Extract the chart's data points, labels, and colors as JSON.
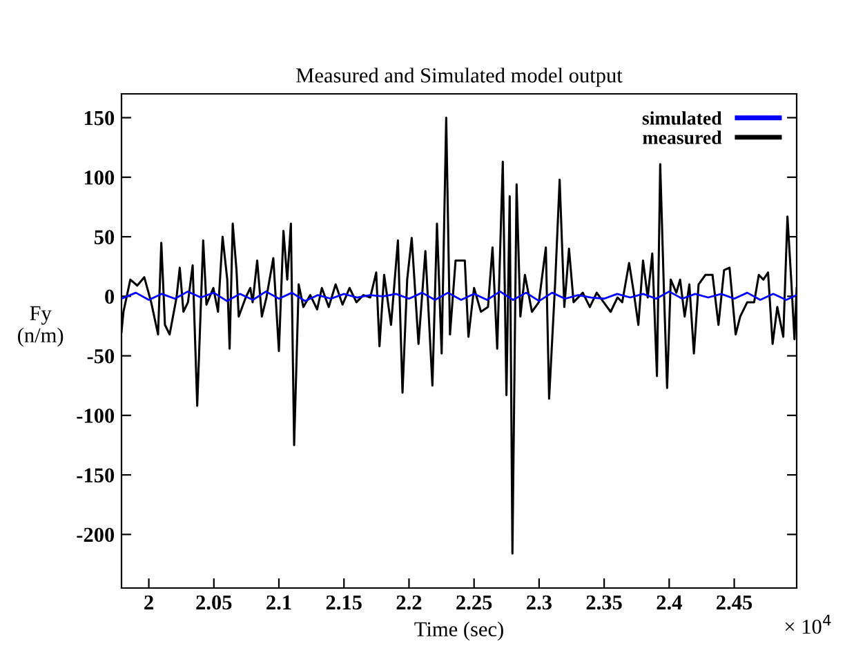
{
  "chart_data": {
    "type": "line",
    "title": "Measured and Simulated model output",
    "xlabel": "Time (sec)",
    "ylabel": "Fy\n(n/m)",
    "annotations": [
      "× 10$^{4}$"
    ],
    "xlim": [
      1.979,
      2.498
    ],
    "ylim": [
      -245,
      170
    ],
    "xticks": [
      2,
      2.05,
      2.1,
      2.15,
      2.2,
      2.25,
      2.3,
      2.35,
      2.4,
      2.45
    ],
    "yticks": [
      -200,
      -150,
      -100,
      -50,
      0,
      50,
      100,
      150
    ],
    "grid": false,
    "legend": "top right",
    "marker": "none",
    "line_style": "solid",
    "series": [
      {
        "name": "simulated",
        "color": "#0000ff",
        "x": [
          1.979,
          1.99,
          2.0,
          2.01,
          2.02,
          2.03,
          2.04,
          2.05,
          2.06,
          2.07,
          2.08,
          2.09,
          2.1,
          2.11,
          2.12,
          2.13,
          2.14,
          2.15,
          2.16,
          2.17,
          2.18,
          2.19,
          2.2,
          2.21,
          2.22,
          2.23,
          2.24,
          2.25,
          2.26,
          2.27,
          2.28,
          2.29,
          2.3,
          2.31,
          2.32,
          2.33,
          2.34,
          2.35,
          2.36,
          2.37,
          2.38,
          2.39,
          2.4,
          2.41,
          2.42,
          2.43,
          2.44,
          2.45,
          2.46,
          2.47,
          2.48,
          2.49,
          2.498
        ],
        "values": [
          -2,
          3,
          -3,
          2,
          -2,
          4,
          -1,
          3,
          -4,
          2,
          -3,
          4,
          -2,
          3,
          -4,
          1,
          -2,
          2,
          -1,
          1,
          0,
          2,
          -2,
          3,
          -3,
          3,
          -3,
          2,
          -3,
          4,
          -3,
          3,
          -4,
          3,
          -2,
          1,
          -1,
          -2,
          2,
          -1,
          2,
          -2,
          4,
          -2,
          2,
          -1,
          2,
          -2,
          3,
          -3,
          2,
          -3,
          1
        ]
      },
      {
        "name": "measured",
        "color": "#000000",
        "x": [
          1.979,
          1.9805,
          1.9858,
          1.9911,
          1.9965,
          2.0018,
          2.0071,
          2.0096,
          2.0124,
          2.016,
          2.0213,
          2.0238,
          2.0266,
          2.0301,
          2.0337,
          2.0372,
          2.0418,
          2.0443,
          2.0496,
          2.0532,
          2.0567,
          2.0603,
          2.0621,
          2.0645,
          2.0674,
          2.0691,
          2.0745,
          2.078,
          2.0798,
          2.0833,
          2.0869,
          2.0904,
          2.0957,
          2.1,
          2.1035,
          2.1064,
          2.1092,
          2.1117,
          2.1152,
          2.1188,
          2.1241,
          2.1294,
          2.133,
          2.1383,
          2.1436,
          2.1489,
          2.1543,
          2.1596,
          2.1649,
          2.1702,
          2.1748,
          2.1773,
          2.1809,
          2.1862,
          2.1915,
          2.195,
          2.1986,
          2.2021,
          2.2073,
          2.2126,
          2.218,
          2.2215,
          2.2251,
          2.2286,
          2.2315,
          2.2358,
          2.2429,
          2.2457,
          2.25,
          2.2553,
          2.2607,
          2.2642,
          2.2678,
          2.2721,
          2.2749,
          2.2774,
          2.2795,
          2.2827,
          2.2856,
          2.2891,
          2.2945,
          2.2998,
          2.3052,
          2.3077,
          2.3123,
          2.3158,
          2.3194,
          2.323,
          2.3265,
          2.3336,
          2.339,
          2.3443,
          2.3496,
          2.355,
          2.3603,
          2.3639,
          2.3692,
          2.3728,
          2.3763,
          2.3799,
          2.3835,
          2.387,
          2.3906,
          2.3931,
          2.3959,
          2.3984,
          2.4012,
          2.4055,
          2.4084,
          2.4119,
          2.4155,
          2.419,
          2.4226,
          2.4279,
          2.4333,
          2.4379,
          2.4422,
          2.4464,
          2.4511,
          2.4546,
          2.46,
          2.4653,
          2.4689,
          2.4724,
          2.476,
          2.4795,
          2.4831,
          2.4877,
          2.4909,
          2.4938,
          2.4963,
          2.498
        ],
        "values": [
          -30,
          -13,
          14,
          9,
          16,
          -5,
          -32,
          45,
          -24,
          -32,
          -1,
          24,
          -13,
          -5,
          26,
          -92,
          47,
          -7,
          7,
          -13,
          50,
          14,
          -44,
          61,
          22,
          -17,
          -1,
          7,
          -5,
          30,
          -17,
          -1,
          32,
          -46,
          55,
          14,
          61,
          -125,
          10,
          -9,
          1,
          -11,
          7,
          -9,
          10,
          -7,
          7,
          -5,
          1,
          -1,
          20,
          -42,
          18,
          -24,
          47,
          -81,
          14,
          49,
          -40,
          38,
          -75,
          61,
          -48,
          150,
          -32,
          30,
          30,
          -34,
          7,
          -13,
          -9,
          41,
          -44,
          113,
          -83,
          84,
          -216,
          94,
          -17,
          18,
          -13,
          -5,
          41,
          -86,
          10,
          98,
          -9,
          40,
          -5,
          3,
          -9,
          3,
          -5,
          -13,
          -1,
          -5,
          28,
          3,
          -24,
          30,
          -1,
          36,
          -67,
          111,
          7,
          -77,
          14,
          3,
          14,
          -17,
          10,
          -48,
          10,
          18,
          18,
          -24,
          22,
          24,
          -32,
          -17,
          -5,
          -5,
          18,
          14,
          20,
          -40,
          -9,
          -34,
          67,
          14,
          -36,
          7
        ]
      }
    ]
  }
}
